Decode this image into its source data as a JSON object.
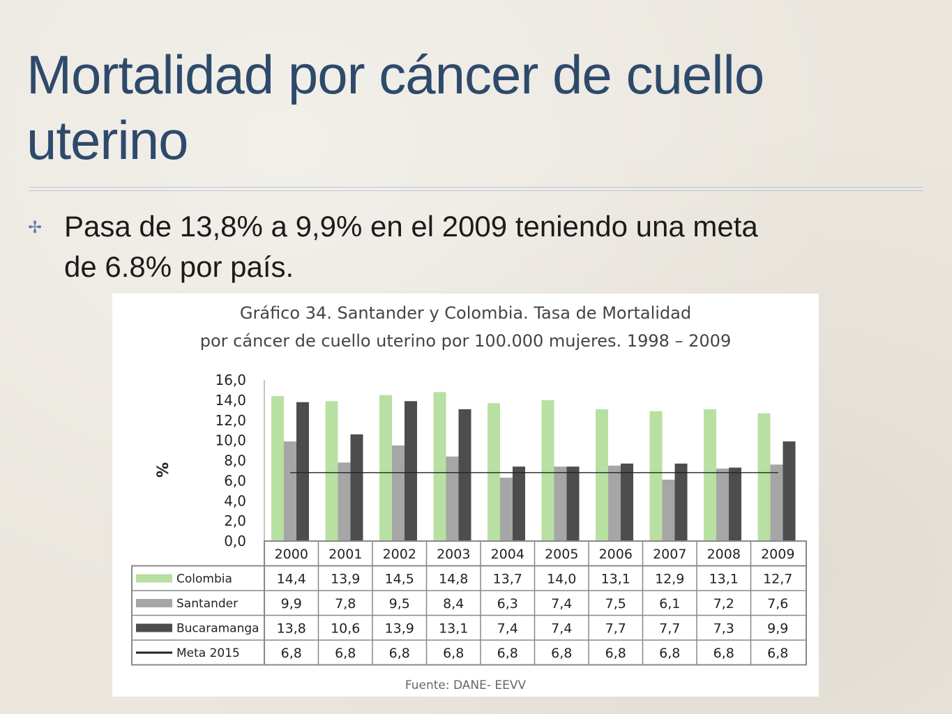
{
  "slide": {
    "title_line1": "Mortalidad por cáncer de cuello",
    "title_line2": "uterino",
    "bullet_line1": "Pasa de 13,8% a 9,9% en el 2009 teniendo una meta",
    "bullet_line2": "de 6.8% por país.",
    "bullet_icon": "cross-bullet-icon"
  },
  "chart_data": {
    "type": "bar",
    "title_line1": "Gráfico 34.  Santander y Colombia. Tasa de Mortalidad",
    "title_line2": "por cáncer de cuello uterino por 100.000 mujeres.  1998 – 2009",
    "ylabel": "%",
    "ylim": [
      0,
      16
    ],
    "yticks": [
      "0,0",
      "2,0",
      "4,0",
      "6,0",
      "8,0",
      "10,0",
      "12,0",
      "14,0",
      "16,0"
    ],
    "categories": [
      "2000",
      "2001",
      "2002",
      "2003",
      "2004",
      "2005",
      "2006",
      "2007",
      "2008",
      "2009"
    ],
    "series": [
      {
        "name": "Colombia",
        "color": "#b8e0a2",
        "kind": "bar",
        "values": [
          14.4,
          13.9,
          14.5,
          14.8,
          13.7,
          14.0,
          13.1,
          12.9,
          13.1,
          12.7
        ],
        "labels": [
          "14,4",
          "13,9",
          "14,5",
          "14,8",
          "13,7",
          "14,0",
          "13,1",
          "12,9",
          "13,1",
          "12,7"
        ]
      },
      {
        "name": "Santander",
        "color": "#a6a6a6",
        "kind": "bar",
        "values": [
          9.9,
          7.8,
          9.5,
          8.4,
          6.3,
          7.4,
          7.5,
          6.1,
          7.2,
          7.6
        ],
        "labels": [
          "9,9",
          "7,8",
          "9,5",
          "8,4",
          "6,3",
          "7,4",
          "7,5",
          "6,1",
          "7,2",
          "7,6"
        ]
      },
      {
        "name": "Bucaramanga",
        "color": "#4d4d4d",
        "kind": "bar",
        "values": [
          13.8,
          10.6,
          13.9,
          13.1,
          7.4,
          7.4,
          7.7,
          7.7,
          7.3,
          9.9
        ],
        "labels": [
          "13,8",
          "10,6",
          "13,9",
          "13,1",
          "7,4",
          "7,4",
          "7,7",
          "7,7",
          "7,3",
          "9,9"
        ]
      },
      {
        "name": "Meta 2015",
        "color": "#222222",
        "kind": "line",
        "values": [
          6.8,
          6.8,
          6.8,
          6.8,
          6.8,
          6.8,
          6.8,
          6.8,
          6.8,
          6.8
        ],
        "labels": [
          "6,8",
          "6,8",
          "6,8",
          "6,8",
          "6,8",
          "6,8",
          "6,8",
          "6,8",
          "6,8",
          "6,8"
        ]
      }
    ],
    "grid": false,
    "legend": "data table below chart",
    "source": "Fuente: DANE- EEVV"
  }
}
